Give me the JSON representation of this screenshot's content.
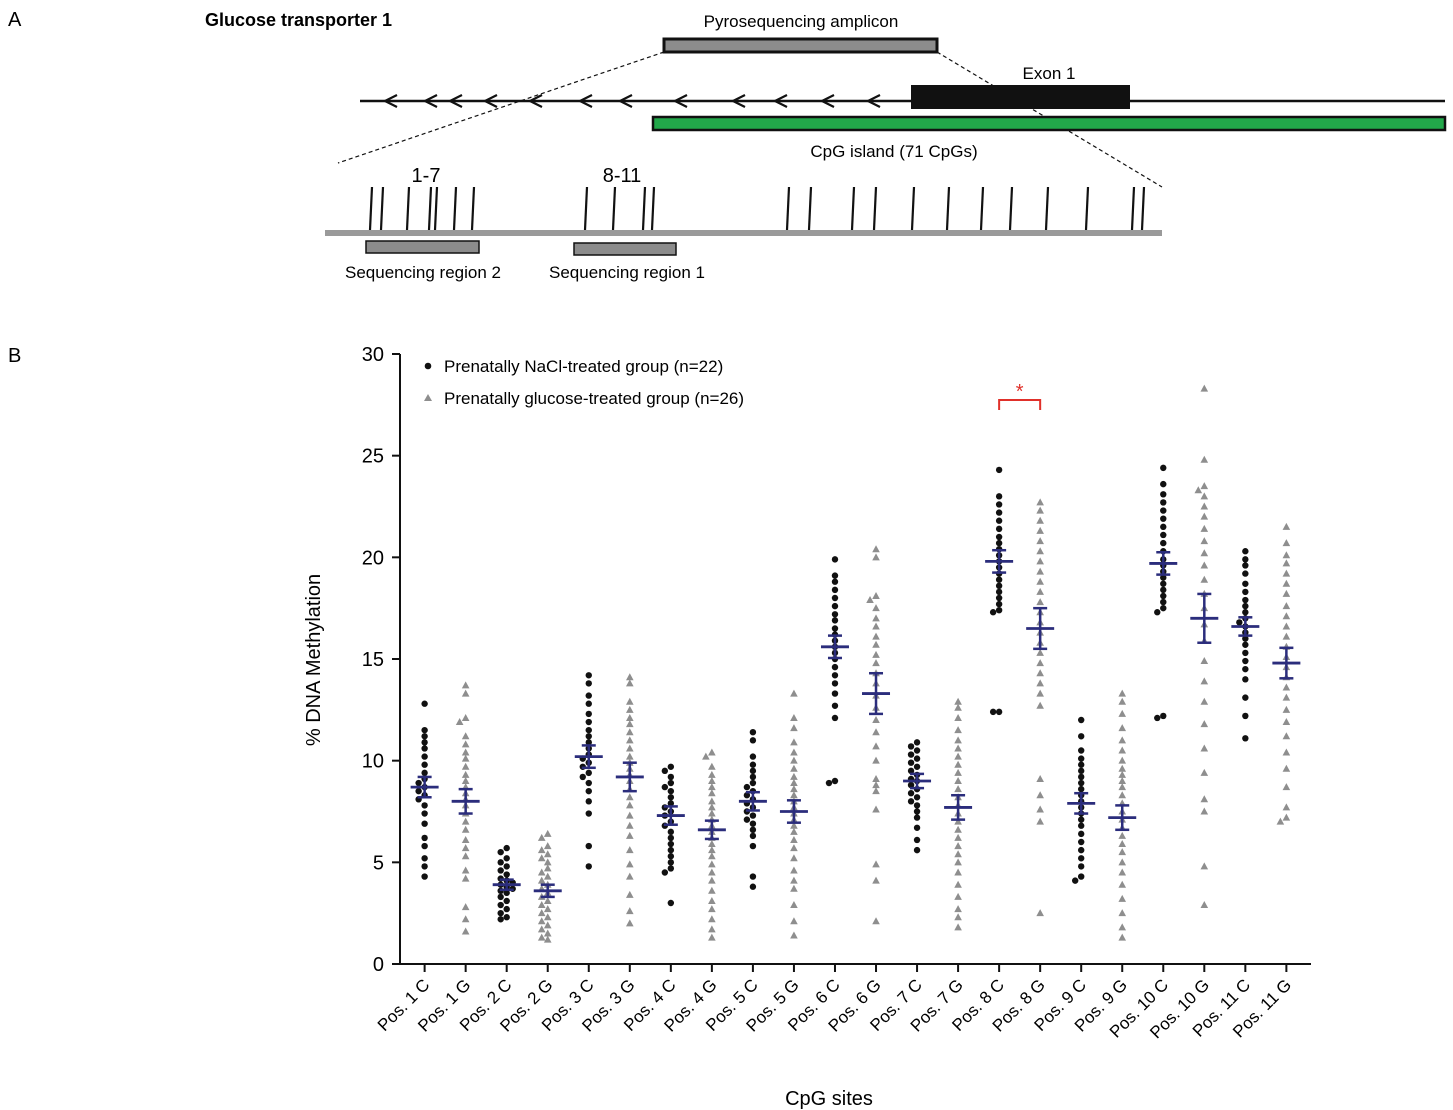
{
  "panel_a": {
    "panel_label": "A",
    "gene_title": "Glucose transporter 1",
    "amplicon_label": "Pyrosequencing amplicon",
    "exon_label": "Exon 1",
    "island_label": "CpG island  (71 CpGs)",
    "cpg_group_1": "1-7",
    "cpg_group_2": "8-11",
    "region_2_label": "Sequencing region 2",
    "region_1_label": "Sequencing region 1",
    "colors": {
      "island": "#22a84a",
      "amplicon": "#8c8c8c",
      "exon": "#111111"
    }
  },
  "chart_data": {
    "type": "scatter",
    "panel_label": "B",
    "xlabel": "CpG sites",
    "ylabel": "% DNA Methylation",
    "ylim": [
      0,
      30
    ],
    "yticks": [
      0,
      5,
      10,
      15,
      20,
      25,
      30
    ],
    "legend_position": "top-left",
    "mean_sem_color": "#2b2d7c",
    "significance": {
      "symbol": "*",
      "between": [
        "Pos. 8 C",
        "Pos. 8 G"
      ],
      "color": "#e0302a"
    },
    "series": [
      {
        "name": "Prenatally NaCl-treated group (n=22)",
        "marker": "circle",
        "color": "#111111"
      },
      {
        "name": "Prenatally glucose-treated group (n=26)",
        "marker": "triangle",
        "color": "#8e8e8e"
      }
    ],
    "categories": [
      {
        "label": "Pos. 1 C",
        "series": 0,
        "mean": 8.7,
        "sem": 0.5,
        "values": [
          12.8,
          11.5,
          11.2,
          10.9,
          10.6,
          10.2,
          9.8,
          9.4,
          9.1,
          8.9,
          8.7,
          8.5,
          8.3,
          8.1,
          7.8,
          7.4,
          6.9,
          6.2,
          5.8,
          5.2,
          4.8,
          4.3
        ]
      },
      {
        "label": "Pos. 1 G",
        "series": 1,
        "mean": 8.0,
        "sem": 0.6,
        "values": [
          13.7,
          13.3,
          12.1,
          11.9,
          11.2,
          10.8,
          10.4,
          10.1,
          9.7,
          9.3,
          9.0,
          8.7,
          8.4,
          8.1,
          7.8,
          7.4,
          7.0,
          6.6,
          6.1,
          5.7,
          5.3,
          4.6,
          4.2,
          2.8,
          2.2,
          1.6
        ]
      },
      {
        "label": "Pos. 2 C",
        "series": 0,
        "mean": 3.9,
        "sem": 0.25,
        "values": [
          5.7,
          5.5,
          5.2,
          5.0,
          4.8,
          4.6,
          4.4,
          4.2,
          4.1,
          4.0,
          3.9,
          3.8,
          3.7,
          3.6,
          3.5,
          3.3,
          3.1,
          2.9,
          2.7,
          2.5,
          2.3,
          2.2
        ]
      },
      {
        "label": "Pos. 2 G",
        "series": 1,
        "mean": 3.6,
        "sem": 0.3,
        "values": [
          6.4,
          6.2,
          5.8,
          5.6,
          5.4,
          5.2,
          5.0,
          4.7,
          4.5,
          4.3,
          4.1,
          3.9,
          3.7,
          3.5,
          3.3,
          3.1,
          2.9,
          2.7,
          2.5,
          2.3,
          2.1,
          1.9,
          1.7,
          1.5,
          1.3,
          1.2
        ]
      },
      {
        "label": "Pos. 3 C",
        "series": 0,
        "mean": 10.2,
        "sem": 0.55,
        "values": [
          14.2,
          13.8,
          13.2,
          12.8,
          12.3,
          11.9,
          11.5,
          11.2,
          10.9,
          10.6,
          10.3,
          10.1,
          9.9,
          9.7,
          9.4,
          9.2,
          8.9,
          8.5,
          8.0,
          7.4,
          5.8,
          4.8
        ]
      },
      {
        "label": "Pos. 3 G",
        "series": 1,
        "mean": 9.2,
        "sem": 0.7,
        "values": [
          14.1,
          13.8,
          12.9,
          12.5,
          12.1,
          11.8,
          11.4,
          11.0,
          10.6,
          10.2,
          9.9,
          9.6,
          9.3,
          9.0,
          8.6,
          8.2,
          7.8,
          7.3,
          6.8,
          6.3,
          5.6,
          4.9,
          4.3,
          3.4,
          2.6,
          2.0
        ]
      },
      {
        "label": "Pos. 4 C",
        "series": 0,
        "mean": 7.3,
        "sem": 0.45,
        "values": [
          9.7,
          9.5,
          9.2,
          8.9,
          8.7,
          8.5,
          8.2,
          7.9,
          7.7,
          7.5,
          7.3,
          7.0,
          6.8,
          6.5,
          6.2,
          5.9,
          5.6,
          5.3,
          5.0,
          4.7,
          4.5,
          3.0
        ]
      },
      {
        "label": "Pos. 4 G",
        "series": 1,
        "mean": 6.6,
        "sem": 0.45,
        "values": [
          10.4,
          10.2,
          9.7,
          9.3,
          9.0,
          8.7,
          8.4,
          8.0,
          7.7,
          7.4,
          7.1,
          6.8,
          6.5,
          6.2,
          5.9,
          5.6,
          5.3,
          4.9,
          4.5,
          4.1,
          3.6,
          3.1,
          2.7,
          2.2,
          1.7,
          1.3
        ]
      },
      {
        "label": "Pos. 5 C",
        "series": 0,
        "mean": 8.0,
        "sem": 0.45,
        "values": [
          11.4,
          11.0,
          10.2,
          9.8,
          9.5,
          9.2,
          8.9,
          8.7,
          8.5,
          8.3,
          8.1,
          7.9,
          7.7,
          7.5,
          7.3,
          7.1,
          6.9,
          6.6,
          6.3,
          5.8,
          4.3,
          3.8
        ]
      },
      {
        "label": "Pos. 5 G",
        "series": 1,
        "mean": 7.5,
        "sem": 0.55,
        "values": [
          13.3,
          12.1,
          11.6,
          10.9,
          10.4,
          10.0,
          9.6,
          9.2,
          8.9,
          8.6,
          8.3,
          8.0,
          7.7,
          7.4,
          7.1,
          6.8,
          6.5,
          6.1,
          5.7,
          5.2,
          4.6,
          4.1,
          3.7,
          2.9,
          2.1,
          1.4
        ]
      },
      {
        "label": "Pos. 6 C",
        "series": 0,
        "mean": 15.6,
        "sem": 0.55,
        "values": [
          19.9,
          19.1,
          18.8,
          18.4,
          18.0,
          17.6,
          17.2,
          16.9,
          16.5,
          16.2,
          15.9,
          15.6,
          15.3,
          15.0,
          14.6,
          14.2,
          13.8,
          13.3,
          12.7,
          12.1,
          9.0,
          8.9
        ]
      },
      {
        "label": "Pos. 6 G",
        "series": 1,
        "mean": 13.3,
        "sem": 1.0,
        "values": [
          20.4,
          20.0,
          18.1,
          17.9,
          17.5,
          17.0,
          16.6,
          16.1,
          15.7,
          15.2,
          14.8,
          14.3,
          13.8,
          13.2,
          12.6,
          12.0,
          11.4,
          10.7,
          10.0,
          9.1,
          8.5,
          7.6,
          4.9,
          4.1,
          2.1,
          8.8
        ]
      },
      {
        "label": "Pos. 7 C",
        "series": 0,
        "mean": 9.0,
        "sem": 0.35,
        "values": [
          10.9,
          10.7,
          10.5,
          10.3,
          10.1,
          9.9,
          9.7,
          9.5,
          9.3,
          9.1,
          9.0,
          8.8,
          8.6,
          8.4,
          8.2,
          8.0,
          7.8,
          7.5,
          7.2,
          6.7,
          6.1,
          5.6
        ]
      },
      {
        "label": "Pos. 7 G",
        "series": 1,
        "mean": 7.7,
        "sem": 0.6,
        "values": [
          12.9,
          12.6,
          12.1,
          11.5,
          11.0,
          10.6,
          10.2,
          9.8,
          9.4,
          9.0,
          8.6,
          8.2,
          7.8,
          7.4,
          7.0,
          6.6,
          6.2,
          5.8,
          5.4,
          5.0,
          4.5,
          3.9,
          3.3,
          2.7,
          2.3,
          1.8
        ]
      },
      {
        "label": "Pos. 8 C",
        "series": 0,
        "mean": 19.8,
        "sem": 0.55,
        "values": [
          24.3,
          23.0,
          22.6,
          22.2,
          21.8,
          21.4,
          21.0,
          20.7,
          20.4,
          20.1,
          19.8,
          19.5,
          19.2,
          18.9,
          18.6,
          18.3,
          18.0,
          17.7,
          17.4,
          17.3,
          12.4,
          12.4
        ]
      },
      {
        "label": "Pos. 8 G",
        "series": 1,
        "mean": 16.5,
        "sem": 1.0,
        "values": [
          22.7,
          22.3,
          21.8,
          21.3,
          20.8,
          20.3,
          19.8,
          19.3,
          18.8,
          18.3,
          17.8,
          17.3,
          16.8,
          16.3,
          15.8,
          15.3,
          14.8,
          14.3,
          13.8,
          13.3,
          12.7,
          9.1,
          8.3,
          7.6,
          7.0,
          2.5
        ]
      },
      {
        "label": "Pos. 9 C",
        "series": 0,
        "mean": 7.9,
        "sem": 0.5,
        "values": [
          12.0,
          11.2,
          10.5,
          10.1,
          9.8,
          9.5,
          9.2,
          8.9,
          8.6,
          8.3,
          8.0,
          7.7,
          7.4,
          7.1,
          6.8,
          6.4,
          6.0,
          5.6,
          5.2,
          4.8,
          4.3,
          4.1
        ]
      },
      {
        "label": "Pos. 9 G",
        "series": 1,
        "mean": 7.2,
        "sem": 0.6,
        "values": [
          13.3,
          12.9,
          12.3,
          11.6,
          11.0,
          10.5,
          10.0,
          9.6,
          9.3,
          9.0,
          8.7,
          8.3,
          7.9,
          7.5,
          7.1,
          6.7,
          6.3,
          5.9,
          5.5,
          5.0,
          4.5,
          3.9,
          3.2,
          2.5,
          1.8,
          1.3
        ]
      },
      {
        "label": "Pos. 10 C",
        "series": 0,
        "mean": 19.7,
        "sem": 0.55,
        "values": [
          24.4,
          23.6,
          23.1,
          22.7,
          22.3,
          21.9,
          21.5,
          21.1,
          20.7,
          20.3,
          19.9,
          19.6,
          19.3,
          19.0,
          18.7,
          18.4,
          18.1,
          17.8,
          17.5,
          17.3,
          12.2,
          12.1
        ]
      },
      {
        "label": "Pos. 10 G",
        "series": 1,
        "mean": 17.0,
        "sem": 1.2,
        "values": [
          28.3,
          24.8,
          23.5,
          23.3,
          23.0,
          22.5,
          22.0,
          21.4,
          20.8,
          20.2,
          19.6,
          18.9,
          18.2,
          17.5,
          16.7,
          15.9,
          14.9,
          13.9,
          12.9,
          11.8,
          10.6,
          9.4,
          8.1,
          7.5,
          4.8,
          2.9
        ]
      },
      {
        "label": "Pos. 11 C",
        "series": 0,
        "mean": 16.6,
        "sem": 0.45,
        "values": [
          20.3,
          19.9,
          19.6,
          19.2,
          18.7,
          18.3,
          17.9,
          17.6,
          17.3,
          17.0,
          16.8,
          16.6,
          16.3,
          16.0,
          15.7,
          15.3,
          14.9,
          14.5,
          14.0,
          13.1,
          12.2,
          11.1
        ]
      },
      {
        "label": "Pos. 11 G",
        "series": 1,
        "mean": 14.8,
        "sem": 0.75,
        "values": [
          21.5,
          20.7,
          20.1,
          19.7,
          19.2,
          18.7,
          18.2,
          17.6,
          17.1,
          16.6,
          16.1,
          15.6,
          15.1,
          14.6,
          14.1,
          13.6,
          13.1,
          12.5,
          11.9,
          11.2,
          10.4,
          9.6,
          8.7,
          7.7,
          7.2,
          7.0
        ]
      }
    ]
  }
}
